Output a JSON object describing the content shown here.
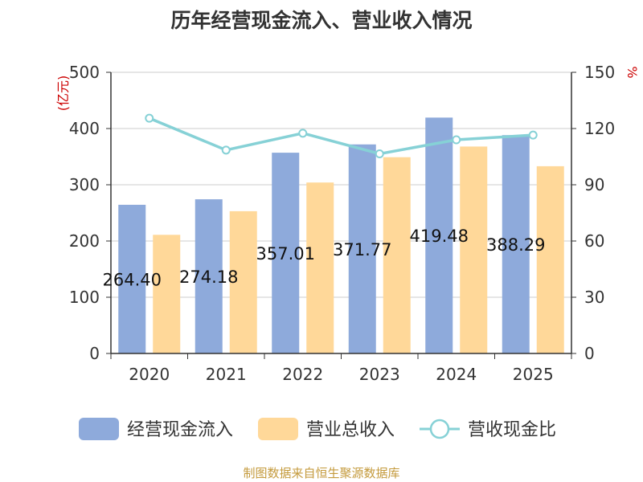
{
  "footer": {
    "source": "制图数据来自恒生聚源数据库"
  },
  "chart_data": {
    "type": "bar",
    "title": "历年经营现金流入、营业收入情况",
    "categories": [
      "2020",
      "2021",
      "2022",
      "2023",
      "2024",
      "2025"
    ],
    "series": [
      {
        "name": "经营现金流入",
        "type": "bar",
        "axis": "left",
        "color": "#8eaadb",
        "values": [
          264.4,
          274.18,
          357.01,
          371.77,
          419.48,
          388.29
        ],
        "value_labels": [
          "264.40",
          "274.18",
          "357.01",
          "371.77",
          "419.48",
          "388.29"
        ]
      },
      {
        "name": "营业总收入",
        "type": "bar",
        "axis": "left",
        "color": "#ffd899",
        "values": [
          211,
          253,
          304,
          349,
          368,
          333
        ]
      },
      {
        "name": "营收现金比",
        "type": "line",
        "axis": "right",
        "color": "#86d1d6",
        "values": [
          125.5,
          108.5,
          117.5,
          106.5,
          114.0,
          116.5
        ]
      }
    ],
    "y_left": {
      "label": "(亿元)",
      "min": 0,
      "max": 500,
      "ticks": [
        "0",
        "100",
        "200",
        "300",
        "400",
        "500"
      ]
    },
    "y_right": {
      "label": "%",
      "min": 0,
      "max": 150,
      "ticks": [
        "0",
        "30",
        "60",
        "90",
        "120",
        "150"
      ]
    },
    "grid": true,
    "legend_position": "bottom"
  }
}
